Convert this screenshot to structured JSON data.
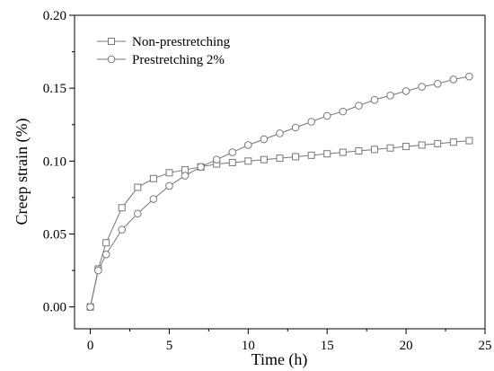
{
  "chart_data": {
    "type": "line",
    "title": "",
    "xlabel": "Time (h)",
    "ylabel": "Creep strain (%)",
    "xlim": [
      -1,
      25
    ],
    "ylim": [
      -0.015,
      0.2
    ],
    "xticks": [
      0,
      5,
      10,
      15,
      20,
      25
    ],
    "yticks": [
      0.0,
      0.05,
      0.1,
      0.15,
      0.2
    ],
    "xtick_labels": [
      "0",
      "5",
      "10",
      "15",
      "20",
      "25"
    ],
    "ytick_labels": [
      "0.00",
      "0.05",
      "0.10",
      "0.15",
      "0.20"
    ],
    "grid": false,
    "legend_position": "top-left",
    "colors": {
      "line": "#777777",
      "axis": "#000000"
    },
    "series": [
      {
        "name": "Non-prestretching",
        "marker": "square",
        "x": [
          0,
          0.5,
          1,
          2,
          3,
          4,
          5,
          6,
          7,
          8,
          9,
          10,
          11,
          12,
          13,
          14,
          15,
          16,
          17,
          18,
          19,
          20,
          21,
          22,
          23,
          24
        ],
        "y": [
          0.0,
          0.026,
          0.044,
          0.068,
          0.082,
          0.088,
          0.092,
          0.094,
          0.096,
          0.098,
          0.099,
          0.1,
          0.101,
          0.102,
          0.103,
          0.104,
          0.105,
          0.106,
          0.107,
          0.108,
          0.109,
          0.11,
          0.111,
          0.112,
          0.113,
          0.114
        ]
      },
      {
        "name": "Prestretching 2%",
        "marker": "circle",
        "x": [
          0,
          0.5,
          1,
          2,
          3,
          4,
          5,
          6,
          7,
          8,
          9,
          10,
          11,
          12,
          13,
          14,
          15,
          16,
          17,
          18,
          19,
          20,
          21,
          22,
          23,
          24
        ],
        "y": [
          0.0,
          0.025,
          0.036,
          0.053,
          0.064,
          0.074,
          0.083,
          0.09,
          0.096,
          0.101,
          0.106,
          0.111,
          0.115,
          0.119,
          0.123,
          0.127,
          0.131,
          0.134,
          0.138,
          0.142,
          0.145,
          0.148,
          0.151,
          0.153,
          0.156,
          0.158
        ]
      }
    ]
  }
}
